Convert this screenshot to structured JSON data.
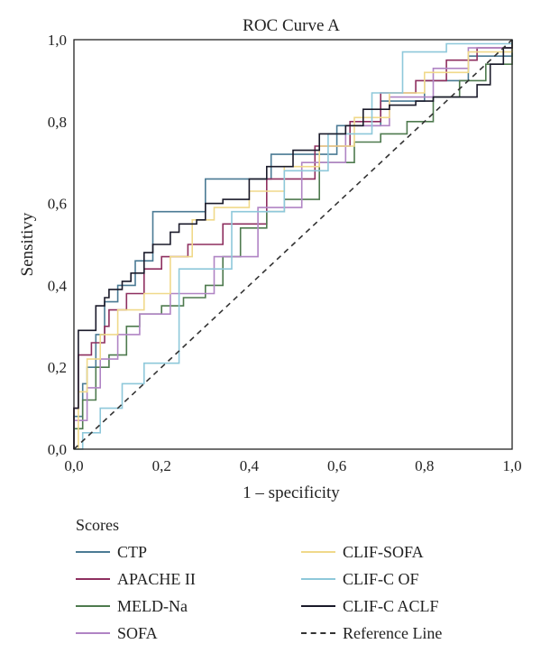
{
  "chart_data": {
    "type": "line",
    "title": "ROC Curve A",
    "xlabel": "1 – specificity",
    "ylabel": "Sensitivy",
    "xlim": [
      0,
      1
    ],
    "ylim": [
      0,
      1
    ],
    "x_ticks": [
      "0,0",
      "0,2",
      "0,4",
      "0,6",
      "0,8",
      "1,0"
    ],
    "y_ticks": [
      "0,0",
      "0,2",
      "0,4",
      "0,6",
      "0,8",
      "1,0"
    ],
    "grid": false,
    "legend_title": "Scores",
    "legend_position": "bottom",
    "series": [
      {
        "name": "CTP",
        "color": "#4a7a94",
        "dash": false,
        "points": [
          [
            0,
            0
          ],
          [
            0.0,
            0.08
          ],
          [
            0.02,
            0.16
          ],
          [
            0.03,
            0.2
          ],
          [
            0.05,
            0.28
          ],
          [
            0.07,
            0.36
          ],
          [
            0.1,
            0.4
          ],
          [
            0.14,
            0.46
          ],
          [
            0.18,
            0.58
          ],
          [
            0.3,
            0.66
          ],
          [
            0.45,
            0.72
          ],
          [
            0.6,
            0.79
          ],
          [
            0.7,
            0.85
          ],
          [
            0.8,
            0.9
          ],
          [
            0.9,
            0.96
          ],
          [
            1,
            1
          ]
        ]
      },
      {
        "name": "APACHE II",
        "color": "#8e2f5f",
        "dash": false,
        "points": [
          [
            0,
            0
          ],
          [
            0.0,
            0.1
          ],
          [
            0.01,
            0.23
          ],
          [
            0.04,
            0.26
          ],
          [
            0.07,
            0.3
          ],
          [
            0.08,
            0.34
          ],
          [
            0.12,
            0.38
          ],
          [
            0.16,
            0.44
          ],
          [
            0.2,
            0.47
          ],
          [
            0.26,
            0.5
          ],
          [
            0.34,
            0.55
          ],
          [
            0.44,
            0.66
          ],
          [
            0.55,
            0.74
          ],
          [
            0.63,
            0.8
          ],
          [
            0.7,
            0.87
          ],
          [
            0.78,
            0.9
          ],
          [
            0.85,
            0.95
          ],
          [
            0.92,
            0.98
          ],
          [
            1,
            1
          ]
        ]
      },
      {
        "name": "MELD-Na",
        "color": "#4e7a4e",
        "dash": false,
        "points": [
          [
            0,
            0
          ],
          [
            0.0,
            0.05
          ],
          [
            0.02,
            0.12
          ],
          [
            0.05,
            0.2
          ],
          [
            0.08,
            0.23
          ],
          [
            0.12,
            0.3
          ],
          [
            0.15,
            0.33
          ],
          [
            0.2,
            0.35
          ],
          [
            0.25,
            0.37
          ],
          [
            0.3,
            0.4
          ],
          [
            0.34,
            0.47
          ],
          [
            0.38,
            0.54
          ],
          [
            0.44,
            0.58
          ],
          [
            0.48,
            0.61
          ],
          [
            0.56,
            0.7
          ],
          [
            0.64,
            0.75
          ],
          [
            0.7,
            0.77
          ],
          [
            0.76,
            0.8
          ],
          [
            0.82,
            0.86
          ],
          [
            0.88,
            0.9
          ],
          [
            0.94,
            0.94
          ],
          [
            1,
            1
          ]
        ]
      },
      {
        "name": "SOFA",
        "color": "#b084c4",
        "dash": false,
        "points": [
          [
            0,
            0
          ],
          [
            0.0,
            0.07
          ],
          [
            0.03,
            0.15
          ],
          [
            0.06,
            0.22
          ],
          [
            0.1,
            0.28
          ],
          [
            0.15,
            0.33
          ],
          [
            0.22,
            0.38
          ],
          [
            0.32,
            0.47
          ],
          [
            0.42,
            0.59
          ],
          [
            0.52,
            0.7
          ],
          [
            0.62,
            0.79
          ],
          [
            0.72,
            0.86
          ],
          [
            0.82,
            0.93
          ],
          [
            0.9,
            0.98
          ],
          [
            1,
            1
          ]
        ]
      },
      {
        "name": "CLIF-SOFA",
        "color": "#f0d98a",
        "dash": false,
        "points": [
          [
            0,
            0
          ],
          [
            0.01,
            0.14
          ],
          [
            0.03,
            0.22
          ],
          [
            0.06,
            0.28
          ],
          [
            0.1,
            0.34
          ],
          [
            0.16,
            0.38
          ],
          [
            0.22,
            0.47
          ],
          [
            0.27,
            0.56
          ],
          [
            0.32,
            0.59
          ],
          [
            0.4,
            0.63
          ],
          [
            0.48,
            0.69
          ],
          [
            0.56,
            0.74
          ],
          [
            0.64,
            0.81
          ],
          [
            0.72,
            0.87
          ],
          [
            0.8,
            0.92
          ],
          [
            0.9,
            0.97
          ],
          [
            1,
            1
          ]
        ]
      },
      {
        "name": "CLIF-C OF",
        "color": "#8ec8da",
        "dash": false,
        "points": [
          [
            0,
            0
          ],
          [
            0.02,
            0.04
          ],
          [
            0.06,
            0.1
          ],
          [
            0.11,
            0.16
          ],
          [
            0.16,
            0.21
          ],
          [
            0.24,
            0.44
          ],
          [
            0.36,
            0.58
          ],
          [
            0.48,
            0.68
          ],
          [
            0.58,
            0.77
          ],
          [
            0.68,
            0.87
          ],
          [
            0.75,
            0.97
          ],
          [
            0.85,
            0.99
          ],
          [
            1,
            1
          ]
        ]
      },
      {
        "name": "CLIF-C ACLF",
        "color": "#1a1a2a",
        "dash": false,
        "points": [
          [
            0,
            0
          ],
          [
            0.0,
            0.1
          ],
          [
            0.01,
            0.29
          ],
          [
            0.04,
            0.29
          ],
          [
            0.05,
            0.35
          ],
          [
            0.07,
            0.37
          ],
          [
            0.08,
            0.39
          ],
          [
            0.11,
            0.41
          ],
          [
            0.13,
            0.43
          ],
          [
            0.16,
            0.48
          ],
          [
            0.18,
            0.5
          ],
          [
            0.22,
            0.53
          ],
          [
            0.24,
            0.55
          ],
          [
            0.28,
            0.56
          ],
          [
            0.3,
            0.6
          ],
          [
            0.34,
            0.61
          ],
          [
            0.4,
            0.66
          ],
          [
            0.44,
            0.69
          ],
          [
            0.5,
            0.73
          ],
          [
            0.56,
            0.77
          ],
          [
            0.62,
            0.79
          ],
          [
            0.66,
            0.83
          ],
          [
            0.72,
            0.84
          ],
          [
            0.78,
            0.85
          ],
          [
            0.82,
            0.86
          ],
          [
            0.9,
            0.86
          ],
          [
            0.92,
            0.89
          ],
          [
            0.95,
            0.94
          ],
          [
            0.98,
            0.98
          ],
          [
            1,
            1
          ]
        ]
      },
      {
        "name": "Reference Line",
        "color": "#333333",
        "dash": true,
        "points": [
          [
            0,
            0
          ],
          [
            1,
            1
          ]
        ]
      }
    ]
  }
}
